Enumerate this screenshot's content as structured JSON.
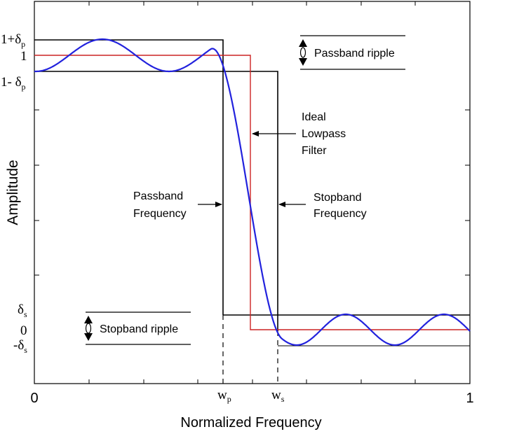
{
  "axes": {
    "ylabel": "Amplitude",
    "xlabel": "Normalized Frequency",
    "x_start": "0",
    "x_end": "1",
    "wp": {
      "base": "w",
      "sub": "p"
    },
    "ws": {
      "base": "w",
      "sub": "s"
    },
    "y_top": {
      "prefix": "1+",
      "sym": "δ",
      "sub": "p"
    },
    "y_one": "1",
    "y_lower": {
      "prefix": "1- ",
      "sym": "δ",
      "sub": "p"
    },
    "y_ds": {
      "sym": "δ",
      "sub": "s"
    },
    "y_zero": "0",
    "y_neg_ds": {
      "prefix": "-",
      "sym": "δ",
      "sub": "s"
    }
  },
  "annotations": {
    "passband_ripple": "Passband ripple",
    "stopband_ripple": "Stopband ripple",
    "ideal_filter": [
      "Ideal",
      "Lowpass",
      "Filter"
    ],
    "passband_freq": [
      "Passband",
      "Frequency"
    ],
    "stopband_freq": [
      "Stopband",
      "Frequency"
    ]
  },
  "colors": {
    "response": "#2222dd",
    "ideal": "#cc2222",
    "tolerance": "#000000"
  }
}
